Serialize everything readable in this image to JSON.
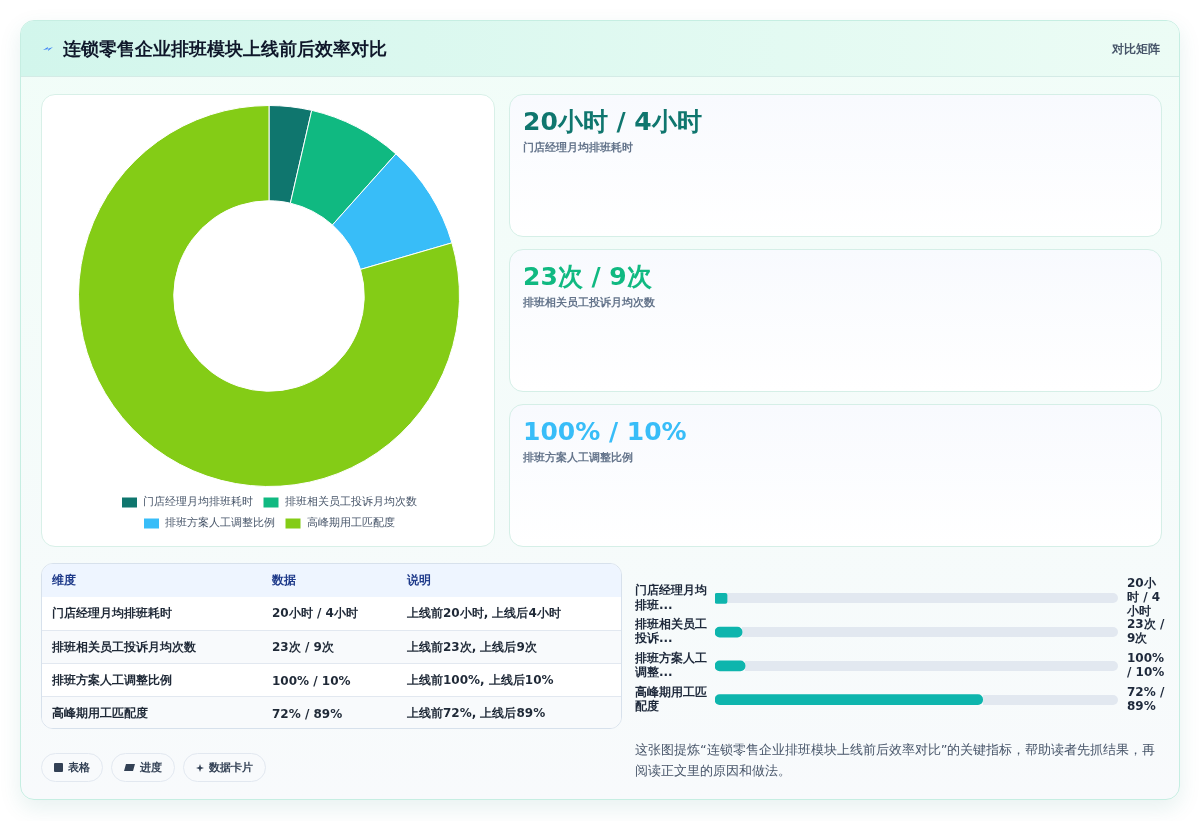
{
  "chart_data": [
    {
      "type": "other",
      "title": "连锁零售企业排班模块上线前后效率对比",
      "annotations": [
        "对比矩阵"
      ]
    },
    {
      "type": "donut",
      "categories": [
        "门店经理月均排班耗时",
        "排班相关员工投诉月均次数",
        "排班方案人工调整比例",
        "高峰期用工匹配度"
      ],
      "values": [
        3.6,
        8.0,
        8.9,
        79.5
      ],
      "colors": [
        "#0f766e",
        "#10b981",
        "#38bdf8",
        "#84cc16"
      ],
      "legend": "bottom"
    },
    {
      "type": "other",
      "annotations": [
        "20小时 / 4小时",
        "门店经理月均排班耗时",
        "23次 / 9次",
        "排班相关员工投诉月均次数",
        "100% / 10%",
        "排班方案人工调整比例"
      ],
      "colors": [
        "#0f766e",
        "#10b981",
        "#38bdf8"
      ]
    },
    {
      "type": "other",
      "categories": [
        "维度",
        "数据",
        "说明"
      ],
      "annotations": [
        "门店经理月均排班耗时",
        "20小时 / 4小时",
        "上线前20小时, 上线后4小时",
        "排班相关员工投诉月均次数",
        "23次 / 9次",
        "上线前23次, 上线后9次",
        "排班方案人工调整比例",
        "100% / 10%",
        "上线前100%, 上线后10%",
        "高峰期用工匹配度",
        "72% / 89%",
        "上线前72%, 上线后89%"
      ]
    },
    {
      "type": "other",
      "annotations": [
        "表格",
        "进度",
        "数据卡片"
      ]
    },
    {
      "type": "bar",
      "orientation": "horizontal",
      "categories": [
        "门店经理月均排班...",
        "排班相关员工投诉...",
        "排班方案人工调整...",
        "高峰期用工匹配度"
      ],
      "values": [
        4,
        9,
        10,
        89
      ],
      "value_labels": [
        "20小时 / 4小时",
        "23次 / 9次",
        "100% / 10%",
        "72% / 89%"
      ],
      "xlim": [
        0,
        134
      ],
      "tick_labels": "y",
      "color": "#0eb5ad",
      "annotations": [
        "这张图提炼“连锁零售企业排班模块上线前后效率对比”的关键指标，帮助读者先抓结果，再阅读正文里的原因和做法。"
      ]
    }
  ]
}
